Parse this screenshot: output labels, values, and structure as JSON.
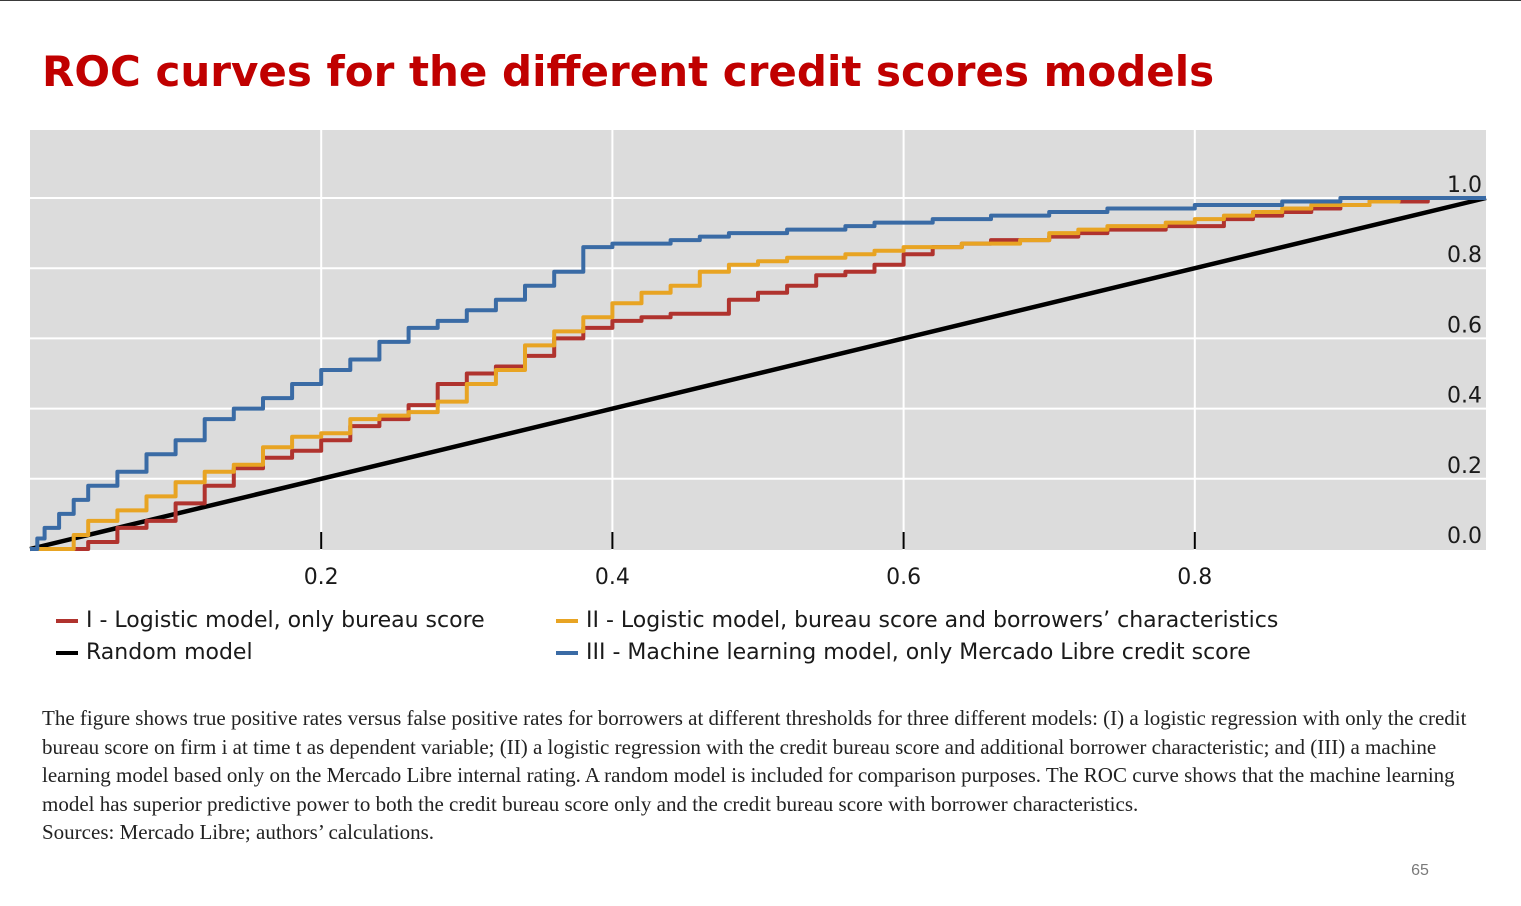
{
  "title": "ROC curves for the different credit scores models",
  "colors": {
    "title": "#c00000",
    "plot_background": "#dcdcdc",
    "grid": "#ffffff",
    "series_I": "#b0332e",
    "series_II": "#e8a423",
    "series_III": "#3a6ba5",
    "random": "#000000"
  },
  "legend": {
    "items": [
      {
        "key": "I",
        "label": "I - Logistic model, only bureau score",
        "color": "#b0332e"
      },
      {
        "key": "II",
        "label": "II - Logistic model,  bureau score and borrowers’ characteristics",
        "color": "#e8a423"
      },
      {
        "key": "random",
        "label": "Random model",
        "color": "#000000"
      },
      {
        "key": "III",
        "label": "III - Machine learning model, only Mercado Libre credit score",
        "color": "#3a6ba5"
      }
    ]
  },
  "chart_data": {
    "type": "line",
    "title": "",
    "xlabel": "",
    "ylabel": "",
    "xlim": [
      0,
      1
    ],
    "ylim": [
      0,
      1
    ],
    "x_ticks": [
      0.2,
      0.4,
      0.6,
      0.8
    ],
    "x_tick_labels": [
      "0.2",
      "0.4",
      "0.6",
      "0.8"
    ],
    "y_ticks": [
      0.0,
      0.2,
      0.4,
      0.6,
      0.8,
      1.0
    ],
    "y_tick_labels": [
      "0.0",
      "0.2",
      "0.4",
      "0.6",
      "0.8",
      "1.0"
    ],
    "y_axis_side": "right",
    "grid": true,
    "legend_position": "bottom",
    "series": [
      {
        "name": "I - Logistic model, only bureau score",
        "color": "#b0332e",
        "step": true,
        "points": [
          [
            0,
            0
          ],
          [
            0.035,
            0
          ],
          [
            0.04,
            0.02
          ],
          [
            0.06,
            0.06
          ],
          [
            0.08,
            0.08
          ],
          [
            0.1,
            0.13
          ],
          [
            0.12,
            0.18
          ],
          [
            0.14,
            0.23
          ],
          [
            0.16,
            0.26
          ],
          [
            0.18,
            0.28
          ],
          [
            0.2,
            0.31
          ],
          [
            0.22,
            0.35
          ],
          [
            0.24,
            0.37
          ],
          [
            0.26,
            0.41
          ],
          [
            0.28,
            0.47
          ],
          [
            0.3,
            0.5
          ],
          [
            0.32,
            0.52
          ],
          [
            0.34,
            0.55
          ],
          [
            0.36,
            0.6
          ],
          [
            0.38,
            0.63
          ],
          [
            0.4,
            0.65
          ],
          [
            0.42,
            0.66
          ],
          [
            0.44,
            0.67
          ],
          [
            0.46,
            0.67
          ],
          [
            0.48,
            0.71
          ],
          [
            0.5,
            0.73
          ],
          [
            0.52,
            0.75
          ],
          [
            0.54,
            0.78
          ],
          [
            0.56,
            0.79
          ],
          [
            0.58,
            0.81
          ],
          [
            0.6,
            0.84
          ],
          [
            0.62,
            0.86
          ],
          [
            0.64,
            0.87
          ],
          [
            0.66,
            0.88
          ],
          [
            0.68,
            0.88
          ],
          [
            0.7,
            0.89
          ],
          [
            0.72,
            0.9
          ],
          [
            0.74,
            0.91
          ],
          [
            0.76,
            0.91
          ],
          [
            0.78,
            0.92
          ],
          [
            0.8,
            0.92
          ],
          [
            0.82,
            0.94
          ],
          [
            0.84,
            0.95
          ],
          [
            0.86,
            0.96
          ],
          [
            0.88,
            0.97
          ],
          [
            0.9,
            0.98
          ],
          [
            0.92,
            0.99
          ],
          [
            0.94,
            0.99
          ],
          [
            0.96,
            1.0
          ],
          [
            1.0,
            1.0
          ]
        ]
      },
      {
        "name": "II - Logistic model,  bureau score and borrowers’ characteristics",
        "color": "#e8a423",
        "step": true,
        "points": [
          [
            0,
            0
          ],
          [
            0.02,
            0
          ],
          [
            0.03,
            0.04
          ],
          [
            0.04,
            0.08
          ],
          [
            0.06,
            0.11
          ],
          [
            0.08,
            0.15
          ],
          [
            0.1,
            0.19
          ],
          [
            0.12,
            0.22
          ],
          [
            0.14,
            0.24
          ],
          [
            0.16,
            0.29
          ],
          [
            0.18,
            0.32
          ],
          [
            0.2,
            0.33
          ],
          [
            0.22,
            0.37
          ],
          [
            0.24,
            0.38
          ],
          [
            0.26,
            0.39
          ],
          [
            0.28,
            0.42
          ],
          [
            0.3,
            0.47
          ],
          [
            0.32,
            0.51
          ],
          [
            0.34,
            0.58
          ],
          [
            0.36,
            0.62
          ],
          [
            0.38,
            0.66
          ],
          [
            0.4,
            0.7
          ],
          [
            0.42,
            0.73
          ],
          [
            0.44,
            0.75
          ],
          [
            0.46,
            0.79
          ],
          [
            0.48,
            0.81
          ],
          [
            0.5,
            0.82
          ],
          [
            0.52,
            0.83
          ],
          [
            0.54,
            0.83
          ],
          [
            0.56,
            0.84
          ],
          [
            0.58,
            0.85
          ],
          [
            0.6,
            0.86
          ],
          [
            0.62,
            0.86
          ],
          [
            0.64,
            0.87
          ],
          [
            0.66,
            0.87
          ],
          [
            0.68,
            0.88
          ],
          [
            0.7,
            0.9
          ],
          [
            0.72,
            0.91
          ],
          [
            0.74,
            0.92
          ],
          [
            0.76,
            0.92
          ],
          [
            0.78,
            0.93
          ],
          [
            0.8,
            0.94
          ],
          [
            0.82,
            0.95
          ],
          [
            0.84,
            0.96
          ],
          [
            0.86,
            0.97
          ],
          [
            0.88,
            0.98
          ],
          [
            0.9,
            0.98
          ],
          [
            0.92,
            0.99
          ],
          [
            0.94,
            1.0
          ],
          [
            1.0,
            1.0
          ]
        ]
      },
      {
        "name": "III - Machine learning model, only Mercado Libre credit score",
        "color": "#3a6ba5",
        "step": true,
        "points": [
          [
            0,
            0
          ],
          [
            0.005,
            0.03
          ],
          [
            0.01,
            0.06
          ],
          [
            0.02,
            0.1
          ],
          [
            0.03,
            0.14
          ],
          [
            0.04,
            0.18
          ],
          [
            0.06,
            0.22
          ],
          [
            0.08,
            0.27
          ],
          [
            0.1,
            0.31
          ],
          [
            0.12,
            0.37
          ],
          [
            0.14,
            0.4
          ],
          [
            0.16,
            0.43
          ],
          [
            0.18,
            0.47
          ],
          [
            0.2,
            0.51
          ],
          [
            0.22,
            0.54
          ],
          [
            0.24,
            0.59
          ],
          [
            0.26,
            0.63
          ],
          [
            0.28,
            0.65
          ],
          [
            0.3,
            0.68
          ],
          [
            0.32,
            0.71
          ],
          [
            0.34,
            0.75
          ],
          [
            0.36,
            0.79
          ],
          [
            0.38,
            0.86
          ],
          [
            0.4,
            0.87
          ],
          [
            0.42,
            0.87
          ],
          [
            0.44,
            0.88
          ],
          [
            0.46,
            0.89
          ],
          [
            0.48,
            0.9
          ],
          [
            0.5,
            0.9
          ],
          [
            0.52,
            0.91
          ],
          [
            0.54,
            0.91
          ],
          [
            0.56,
            0.92
          ],
          [
            0.58,
            0.93
          ],
          [
            0.6,
            0.93
          ],
          [
            0.62,
            0.94
          ],
          [
            0.64,
            0.94
          ],
          [
            0.66,
            0.95
          ],
          [
            0.68,
            0.95
          ],
          [
            0.7,
            0.96
          ],
          [
            0.72,
            0.96
          ],
          [
            0.74,
            0.97
          ],
          [
            0.76,
            0.97
          ],
          [
            0.78,
            0.97
          ],
          [
            0.8,
            0.98
          ],
          [
            0.82,
            0.98
          ],
          [
            0.84,
            0.98
          ],
          [
            0.86,
            0.99
          ],
          [
            0.88,
            0.99
          ],
          [
            0.9,
            1.0
          ],
          [
            1.0,
            1.0
          ]
        ]
      },
      {
        "name": "Random model",
        "color": "#000000",
        "step": false,
        "points": [
          [
            0,
            0
          ],
          [
            1,
            1
          ]
        ]
      }
    ]
  },
  "caption": {
    "paragraph": "The figure shows true positive rates versus false positive rates for borrowers at different thresholds for three different models: (I) a logistic regression with only the credit bureau score on firm i at time t as dependent variable; (II) a logistic regression with the credit bureau score and additional borrower characteristic; and (III) a machine learning model based only on the Mercado Libre internal rating. A random model is included for comparison purposes. The ROC curve shows that the machine learning model has superior predictive power to both the credit bureau score only and the credit bureau score with borrower characteristics.",
    "sources": "Sources: Mercado Libre; authors’ calculations."
  },
  "page_number": "65"
}
